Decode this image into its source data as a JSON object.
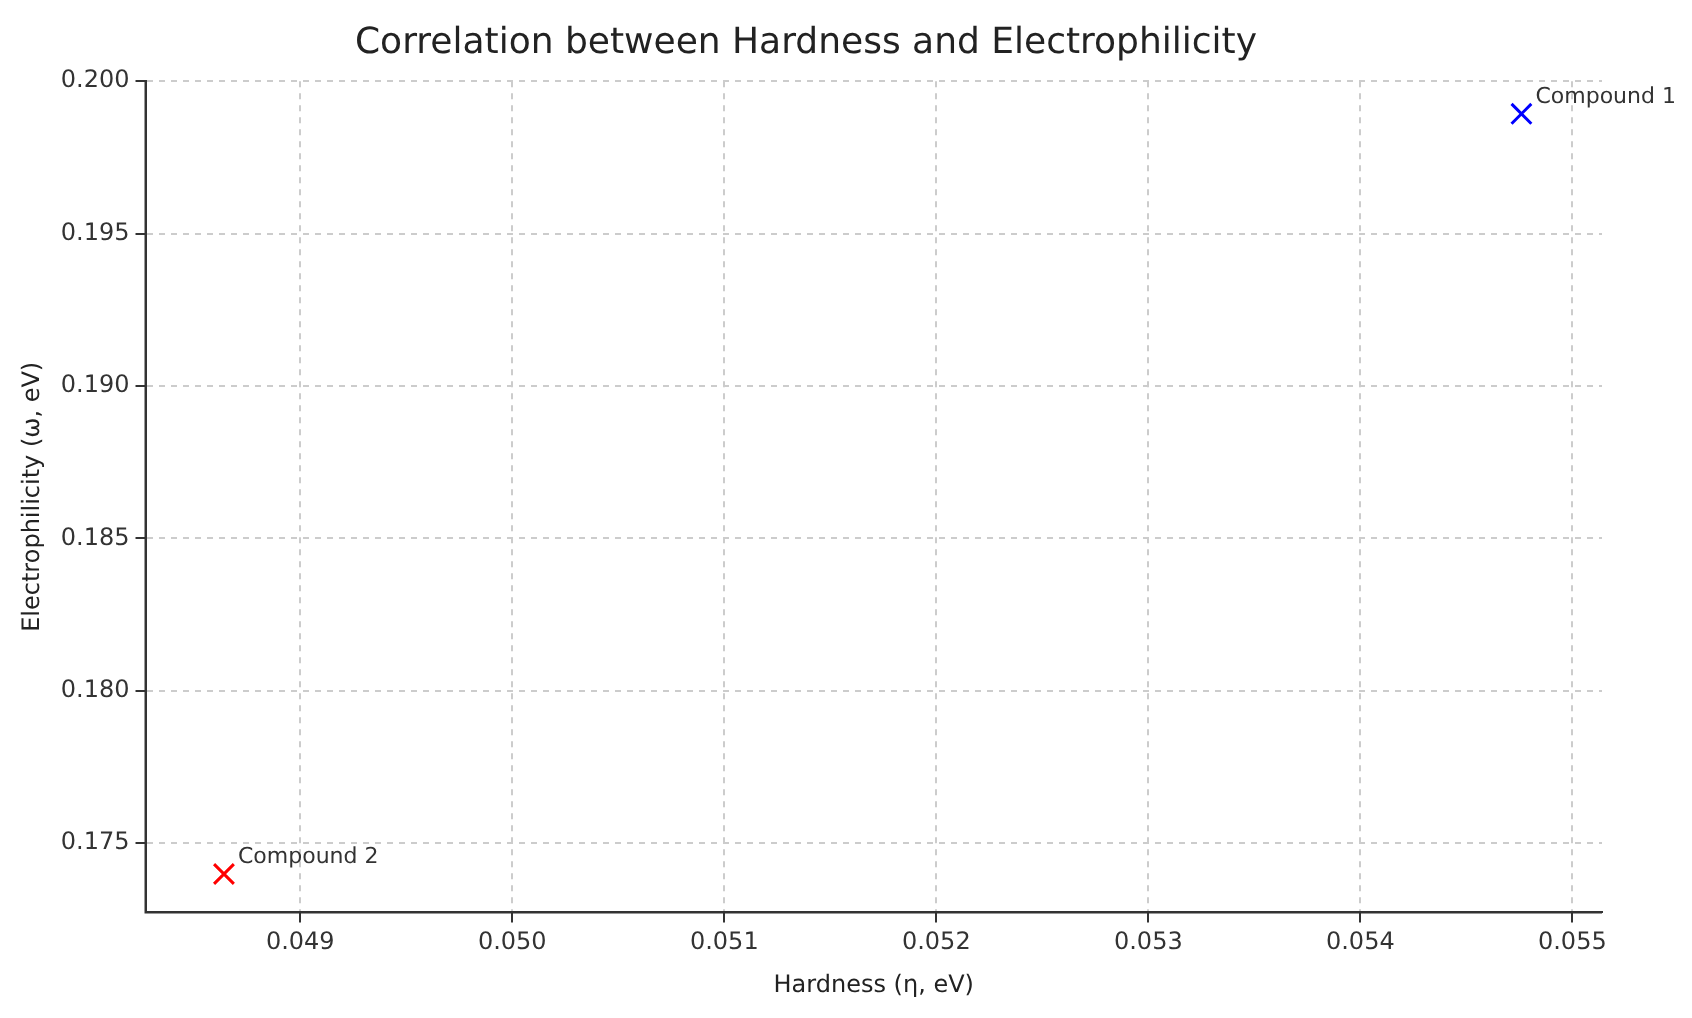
{
  "chart_data": {
    "type": "scatter",
    "title": "Correlation between Hardness and Electrophilicity",
    "xlabel": "Hardness (η, eV)",
    "ylabel": "Electrophilicity (ω, eV)",
    "series": [
      {
        "name": "Compound 1",
        "color": "#0000ff",
        "x": [
          0.05476
        ],
        "values": [
          0.19893
        ]
      },
      {
        "name": "Compound 2",
        "color": "#ff0000",
        "x": [
          0.04864
        ],
        "values": [
          0.17399
        ]
      }
    ],
    "xlim": [
      0.04827,
      0.05514
    ],
    "xticks": [
      {
        "value": 0.049,
        "label": "0.049"
      },
      {
        "value": 0.05,
        "label": "0.050"
      },
      {
        "value": 0.051,
        "label": "0.051"
      },
      {
        "value": 0.052,
        "label": "0.052"
      },
      {
        "value": 0.053,
        "label": "0.053"
      },
      {
        "value": 0.054,
        "label": "0.054"
      },
      {
        "value": 0.055,
        "label": "0.055"
      }
    ],
    "ylim": [
      0.17273,
      0.2
    ],
    "yticks": [
      {
        "value": 0.175,
        "label": "0.175"
      },
      {
        "value": 0.18,
        "label": "0.180"
      },
      {
        "value": 0.185,
        "label": "0.185"
      },
      {
        "value": 0.19,
        "label": "0.190"
      },
      {
        "value": 0.195,
        "label": "0.195"
      },
      {
        "value": 0.2,
        "label": "0.200"
      }
    ],
    "grid": true,
    "legend": false,
    "marker": "cross"
  }
}
